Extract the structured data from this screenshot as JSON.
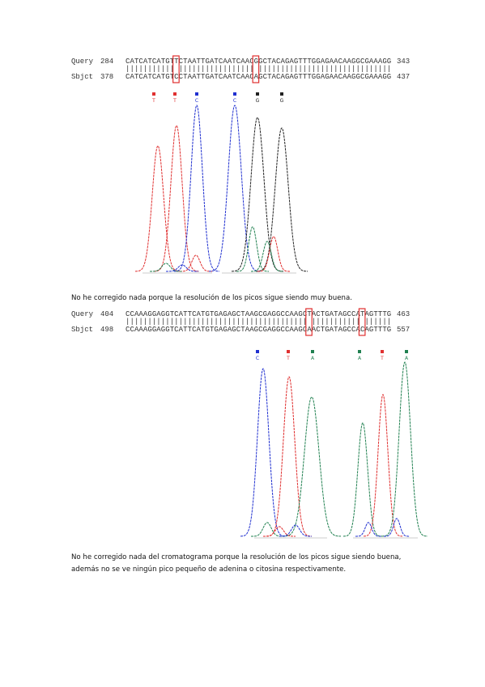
{
  "alignments": [
    {
      "query_label": "Query",
      "query_start": "284",
      "query_seq": "CATCATCATGTTCTAATTGATCAATCAACGGCTACAGAGTTTGGAGAACAAGGCGAAAGG",
      "query_end": "343",
      "match": "||||||||||| ||||||||||||||||| ||||||||||||||||||||||||||||||",
      "sbjct_label": "Sbjct",
      "sbjct_start": "378",
      "sbjct_seq": "CATCATCATGTCCTAATTGATCAATCAACAGCTACAGAGTTTGGAGAACAAGGCGAAAGG",
      "sbjct_end": "437",
      "base_calls": [
        {
          "label": "T",
          "color": "#e03030"
        },
        {
          "label": "T",
          "color": "#e03030"
        },
        {
          "label": "C",
          "color": "#2030d0"
        },
        {
          "label": "C",
          "color": "#2030d0"
        },
        {
          "label": "G",
          "color": "#222222"
        },
        {
          "label": "G",
          "color": "#222222"
        }
      ],
      "caption": [
        "No he corregido nada porque la resolución de los picos sigue siendo muy buena."
      ]
    },
    {
      "query_label": "Query",
      "query_start": "404",
      "query_seq": "CCAAAGGAGGTCATTCATGTGAGAGCTAAGCGAGGCCAAGCTACTGATAGCCATAGTTTG",
      "query_end": "463",
      "match": "||||||||||||||||||||||||||||||||||||||||| ||||||||||| ||||||",
      "sbjct_label": "Sbjct",
      "sbjct_start": "498",
      "sbjct_seq": "CCAAAGGAGGTCATTCATGTGAGAGCTAAGCGAGGCCAAGCAACTGATAGCCACAGTTTG",
      "sbjct_end": "557",
      "base_calls": [
        {
          "label": "C",
          "color": "#2030d0"
        },
        {
          "label": "T",
          "color": "#e03030"
        },
        {
          "label": "A",
          "color": "#208050"
        },
        {
          "label": "A",
          "color": "#208050"
        },
        {
          "label": "T",
          "color": "#e03030"
        },
        {
          "label": "A",
          "color": "#208050"
        }
      ],
      "caption": [
        "No he corregido nada del cromatograma porque la resolución de los picos sigue siendo buena,",
        "además no se ve ningún pico pequeño de adenina o citosina respectivamente."
      ]
    }
  ]
}
